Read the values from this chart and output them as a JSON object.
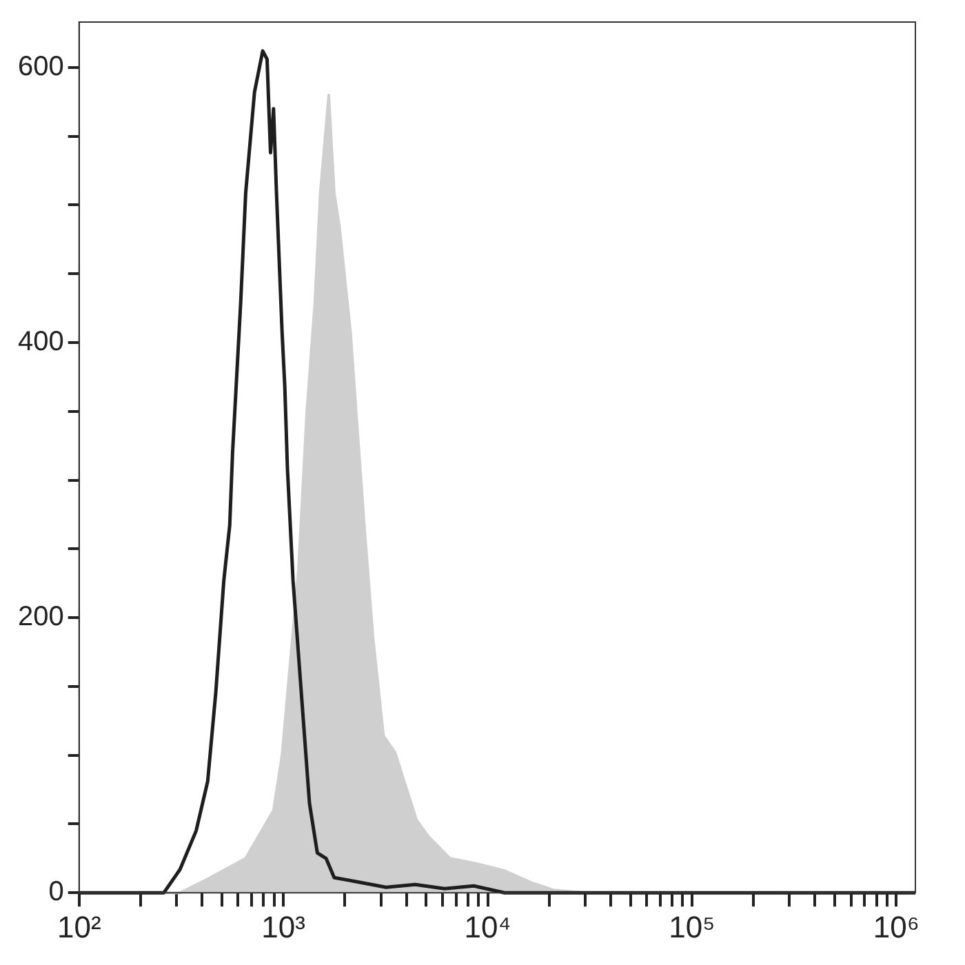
{
  "chart_data": {
    "type": "line",
    "log": "x",
    "legend": false,
    "xlim": [
      100,
      1240000
    ],
    "ylim": [
      0,
      633
    ],
    "xticks": [
      {
        "value": 100,
        "label": "10²"
      },
      {
        "value": 200,
        "label": null
      },
      {
        "value": 300,
        "label": null
      },
      {
        "value": 400,
        "label": null
      },
      {
        "value": 500,
        "label": null
      },
      {
        "value": 600,
        "label": null
      },
      {
        "value": 700,
        "label": null
      },
      {
        "value": 800,
        "label": null
      },
      {
        "value": 900,
        "label": null
      },
      {
        "value": 1000,
        "label": "10³"
      },
      {
        "value": 2000,
        "label": null
      },
      {
        "value": 3000,
        "label": null
      },
      {
        "value": 4000,
        "label": null
      },
      {
        "value": 5000,
        "label": null
      },
      {
        "value": 6000,
        "label": null
      },
      {
        "value": 7000,
        "label": null
      },
      {
        "value": 8000,
        "label": null
      },
      {
        "value": 9000,
        "label": null
      },
      {
        "value": 10000,
        "label": "10⁴"
      },
      {
        "value": 20000,
        "label": null
      },
      {
        "value": 30000,
        "label": null
      },
      {
        "value": 40000,
        "label": null
      },
      {
        "value": 50000,
        "label": null
      },
      {
        "value": 60000,
        "label": null
      },
      {
        "value": 70000,
        "label": null
      },
      {
        "value": 80000,
        "label": null
      },
      {
        "value": 90000,
        "label": null
      },
      {
        "value": 100000,
        "label": "10⁵"
      },
      {
        "value": 200000,
        "label": null
      },
      {
        "value": 300000,
        "label": null
      },
      {
        "value": 400000,
        "label": null
      },
      {
        "value": 500000,
        "label": null
      },
      {
        "value": 600000,
        "label": null
      },
      {
        "value": 700000,
        "label": null
      },
      {
        "value": 800000,
        "label": null
      },
      {
        "value": 900000,
        "label": null
      },
      {
        "value": 1000000,
        "label": "10⁶"
      }
    ],
    "yticks": [
      0,
      {
        "value": 50,
        "label": null
      },
      {
        "value": 100,
        "label": null
      },
      {
        "value": 150,
        "label": null
      },
      200,
      {
        "value": 250,
        "label": null
      },
      {
        "value": 300,
        "label": null
      },
      {
        "value": 350,
        "label": null
      },
      400,
      {
        "value": 450,
        "label": null
      },
      {
        "value": 500,
        "label": null
      },
      {
        "value": 550,
        "label": null
      },
      600
    ],
    "series": [
      {
        "type": "area",
        "color": "#cfcfcf",
        "x": [
          100,
          312,
          426,
          654,
          895,
          985,
          1078,
          1186,
          1300,
          1426,
          1516,
          1668,
          1773,
          1878,
          2130,
          2275,
          2490,
          2740,
          3090,
          3520,
          3980,
          4480,
          5120,
          6540,
          8900,
          12100,
          16600,
          21000,
          30000,
          1240000
        ],
        "values": [
          0,
          0,
          10,
          25,
          60,
          100,
          166,
          235,
          348,
          429,
          509,
          580,
          509,
          485,
          408,
          348,
          267,
          187,
          114,
          102,
          77,
          53,
          41,
          25,
          21,
          16,
          7,
          2,
          0,
          0
        ]
      },
      {
        "color": "#1e1e1e",
        "x": [
          100,
          260,
          312,
          374,
          426,
          467,
          511,
          546,
          564,
          618,
          654,
          722,
          792,
          832,
          865,
          895,
          925,
          985,
          1016,
          1047,
          1115,
          1223,
          1342,
          1466,
          1618,
          1773,
          2290,
          3180,
          4420,
          6150,
          8550,
          12100,
          1240000
        ],
        "values": [
          0,
          0,
          17,
          45,
          81,
          146,
          227,
          267,
          320,
          429,
          509,
          582,
          612,
          606,
          538,
          570,
          509,
          408,
          368,
          308,
          227,
          146,
          65,
          29,
          25,
          11,
          8,
          4,
          6,
          3,
          5,
          0,
          0
        ]
      }
    ]
  }
}
